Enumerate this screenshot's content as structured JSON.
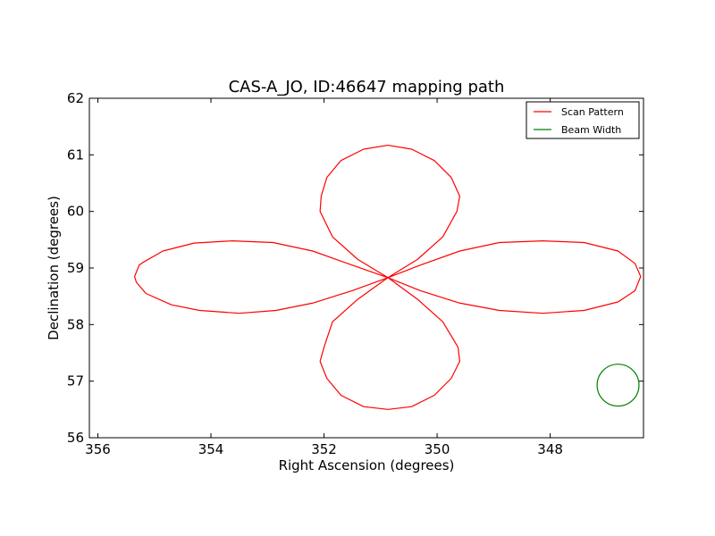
{
  "chart_data": {
    "type": "line",
    "title": "CAS-A_JO, ID:46647 mapping path",
    "xlabel": "Right Ascension (degrees)",
    "ylabel": "Declination (degrees)",
    "xlim": [
      356.15,
      346.35
    ],
    "ylim": [
      56,
      62
    ],
    "x_ticks": [
      356,
      354,
      352,
      350,
      348
    ],
    "y_ticks": [
      56,
      57,
      58,
      59,
      60,
      61,
      62
    ],
    "x_tick_labels": [
      "356",
      "354",
      "352",
      "350",
      "348"
    ],
    "y_tick_labels": [
      "56",
      "57",
      "58",
      "59",
      "60",
      "61",
      "62"
    ],
    "grid": false,
    "legend_position": "top-right",
    "series": [
      {
        "name": "Scan Pattern",
        "color": "#ff0000",
        "points": [
          [
            350.87,
            58.83
          ],
          [
            351.5,
            59.05
          ],
          [
            352.2,
            59.3
          ],
          [
            352.9,
            59.45
          ],
          [
            353.62,
            59.48
          ],
          [
            354.3,
            59.44
          ],
          [
            354.85,
            59.3
          ],
          [
            355.2,
            59.1
          ],
          [
            355.27,
            59.05
          ],
          [
            355.35,
            58.85
          ],
          [
            355.32,
            58.75
          ],
          [
            355.15,
            58.55
          ],
          [
            354.7,
            58.35
          ],
          [
            354.2,
            58.25
          ],
          [
            353.5,
            58.2
          ],
          [
            352.85,
            58.25
          ],
          [
            352.2,
            58.38
          ],
          [
            351.5,
            58.6
          ],
          [
            350.87,
            58.83
          ],
          [
            350.3,
            59.05
          ],
          [
            349.6,
            59.3
          ],
          [
            348.9,
            59.45
          ],
          [
            348.13,
            59.48
          ],
          [
            347.4,
            59.45
          ],
          [
            346.8,
            59.3
          ],
          [
            346.5,
            59.08
          ],
          [
            346.4,
            58.85
          ],
          [
            346.5,
            58.6
          ],
          [
            346.8,
            58.4
          ],
          [
            347.4,
            58.25
          ],
          [
            348.13,
            58.2
          ],
          [
            348.9,
            58.25
          ],
          [
            349.6,
            58.38
          ],
          [
            350.3,
            58.6
          ],
          [
            350.87,
            58.83
          ],
          [
            350.35,
            59.15
          ],
          [
            349.9,
            59.55
          ],
          [
            349.65,
            60.0
          ],
          [
            349.6,
            60.27
          ],
          [
            349.75,
            60.6
          ],
          [
            350.05,
            60.9
          ],
          [
            350.45,
            61.1
          ],
          [
            350.87,
            61.17
          ],
          [
            351.3,
            61.1
          ],
          [
            351.7,
            60.9
          ],
          [
            351.95,
            60.6
          ],
          [
            352.05,
            60.27
          ],
          [
            352.07,
            60.0
          ],
          [
            351.85,
            59.55
          ],
          [
            351.4,
            59.15
          ],
          [
            350.87,
            58.83
          ],
          [
            350.35,
            58.45
          ],
          [
            349.9,
            58.05
          ],
          [
            349.63,
            57.6
          ],
          [
            349.6,
            57.35
          ],
          [
            349.75,
            57.05
          ],
          [
            350.05,
            56.75
          ],
          [
            350.45,
            56.55
          ],
          [
            350.87,
            56.5
          ],
          [
            351.3,
            56.55
          ],
          [
            351.7,
            56.75
          ],
          [
            351.95,
            57.05
          ],
          [
            352.07,
            57.35
          ],
          [
            352.0,
            57.6
          ],
          [
            351.85,
            58.05
          ],
          [
            351.4,
            58.45
          ],
          [
            350.87,
            58.83
          ]
        ]
      },
      {
        "name": "Beam Width",
        "color": "#008000",
        "shape": "circle",
        "center": [
          346.8,
          56.93
        ],
        "radius_deg": 0.37
      }
    ]
  }
}
